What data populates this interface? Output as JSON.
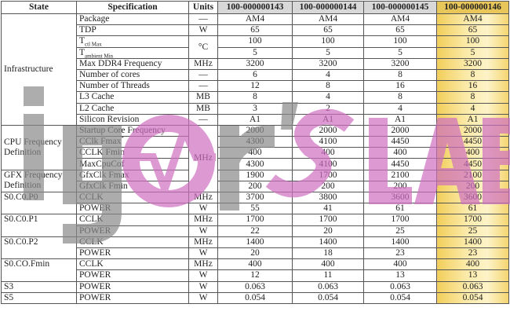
{
  "headers": {
    "state": "State",
    "specification": "Specification",
    "units": "Units",
    "parts": [
      "100-000000143",
      "100-000000144",
      "100-000000145",
      "100-000000146"
    ]
  },
  "highlight_part_index": 3,
  "colors": {
    "highlight": "#f2cf5c",
    "header_gray": "#d8d8d8",
    "watermark_gray": "#8a8a8a",
    "watermark_pink": "#cf6fc0"
  },
  "watermark": {
    "logo_text": "igor'sLAB"
  },
  "groups": [
    {
      "state": "Infrastructure",
      "align": "middle",
      "rows": [
        {
          "spec": "Package",
          "units": "—",
          "values": [
            "AM4",
            "AM4",
            "AM4",
            "AM4"
          ]
        },
        {
          "spec": "TDP",
          "units": "W",
          "values": [
            "65",
            "65",
            "65",
            "65"
          ]
        },
        {
          "spec": "T",
          "sub": "ctl Max",
          "units": "°C",
          "values": [
            "100",
            "100",
            "100",
            "100"
          ]
        },
        {
          "spec": "T",
          "sub": "ambient Min",
          "units": null,
          "values": [
            "5",
            "5",
            "5",
            "5"
          ]
        },
        {
          "spec": "Max DDR4 Frequency",
          "units": "MHz",
          "values": [
            "3200",
            "3200",
            "3200",
            "3200"
          ]
        },
        {
          "spec": "Number of cores",
          "units": "—",
          "values": [
            "6",
            "4",
            "8",
            "8"
          ]
        },
        {
          "spec": "Number of Threads",
          "units": "—",
          "values": [
            "12",
            "8",
            "16",
            "16"
          ]
        },
        {
          "spec": "L3 Cache",
          "units": "MB",
          "values": [
            "8",
            "4",
            "8",
            "8"
          ]
        },
        {
          "spec": "L2 Cache",
          "units": "MB",
          "values": [
            "3",
            "2",
            "4",
            "4"
          ]
        },
        {
          "spec": "Silicon Revision",
          "units": "—",
          "values": [
            "A1",
            "A1",
            "A1",
            "A1"
          ]
        }
      ]
    },
    {
      "state": "CPU Frequency Definition",
      "align": "middle",
      "rows": [
        {
          "spec": "Startup Core Frequency",
          "units": "MHz",
          "values": [
            "2000",
            "2000",
            "2000",
            "2000"
          ]
        },
        {
          "spec": "CClk Fmax",
          "sup": "*",
          "units": null,
          "values": [
            "4300",
            "4100",
            "4450",
            "4450"
          ]
        },
        {
          "spec": "CCLK Fmin",
          "units": null,
          "values": [
            "400",
            "400",
            "400",
            "400"
          ]
        },
        {
          "spec": "MaxCpuCof",
          "units": null,
          "values": [
            "4300",
            "4100",
            "4450",
            "4450"
          ]
        }
      ]
    },
    {
      "state": "GFX Frequency Definition",
      "align": "middle",
      "rows": [
        {
          "spec": "GfxClk Fmax",
          "units": null,
          "values": [
            "1900",
            "1700",
            "2100",
            "2100"
          ]
        },
        {
          "spec": "GfxClk Fmin",
          "units": null,
          "values": [
            "200",
            "200",
            "200",
            "200"
          ]
        }
      ]
    },
    {
      "state": "S0.C0.P0",
      "align": "top",
      "rows": [
        {
          "spec": "CCLK",
          "units": "MHz",
          "values": [
            "3700",
            "3800",
            "3600",
            "3600"
          ]
        },
        {
          "spec": "POWER",
          "units": "W",
          "values": [
            "55",
            "41",
            "61",
            "61"
          ]
        }
      ]
    },
    {
      "state": "S0.C0.P1",
      "align": "top",
      "rows": [
        {
          "spec": "CCLK",
          "units": "MHz",
          "values": [
            "1700",
            "1700",
            "1700",
            "1700"
          ]
        },
        {
          "spec": "POWER",
          "units": "W",
          "values": [
            "22",
            "20",
            "25",
            "25"
          ]
        }
      ]
    },
    {
      "state": "S0.C0.P2",
      "align": "top",
      "rows": [
        {
          "spec": "CCLK",
          "units": "MHz",
          "values": [
            "1400",
            "1400",
            "1400",
            "1400"
          ]
        },
        {
          "spec": "POWER",
          "units": "W",
          "values": [
            "20",
            "18",
            "23",
            "23"
          ]
        }
      ]
    },
    {
      "state": "S0.CO.Fmin",
      "align": "top",
      "rows": [
        {
          "spec": "CCLK",
          "units": "MHz",
          "values": [
            "400",
            "400",
            "400",
            "400"
          ]
        },
        {
          "spec": "POWER",
          "units": "W",
          "values": [
            "12",
            "11",
            "13",
            "13"
          ]
        }
      ]
    },
    {
      "state": "S3",
      "align": "top",
      "rows": [
        {
          "spec": "POWER",
          "units": "W",
          "values": [
            "0.063",
            "0.063",
            "0.063",
            "0.063"
          ]
        }
      ]
    },
    {
      "state": "S5",
      "align": "top",
      "rows": [
        {
          "spec": "POWER",
          "units": "W",
          "values": [
            "0.054",
            "0.054",
            "0.054",
            "0.054"
          ]
        }
      ]
    }
  ]
}
